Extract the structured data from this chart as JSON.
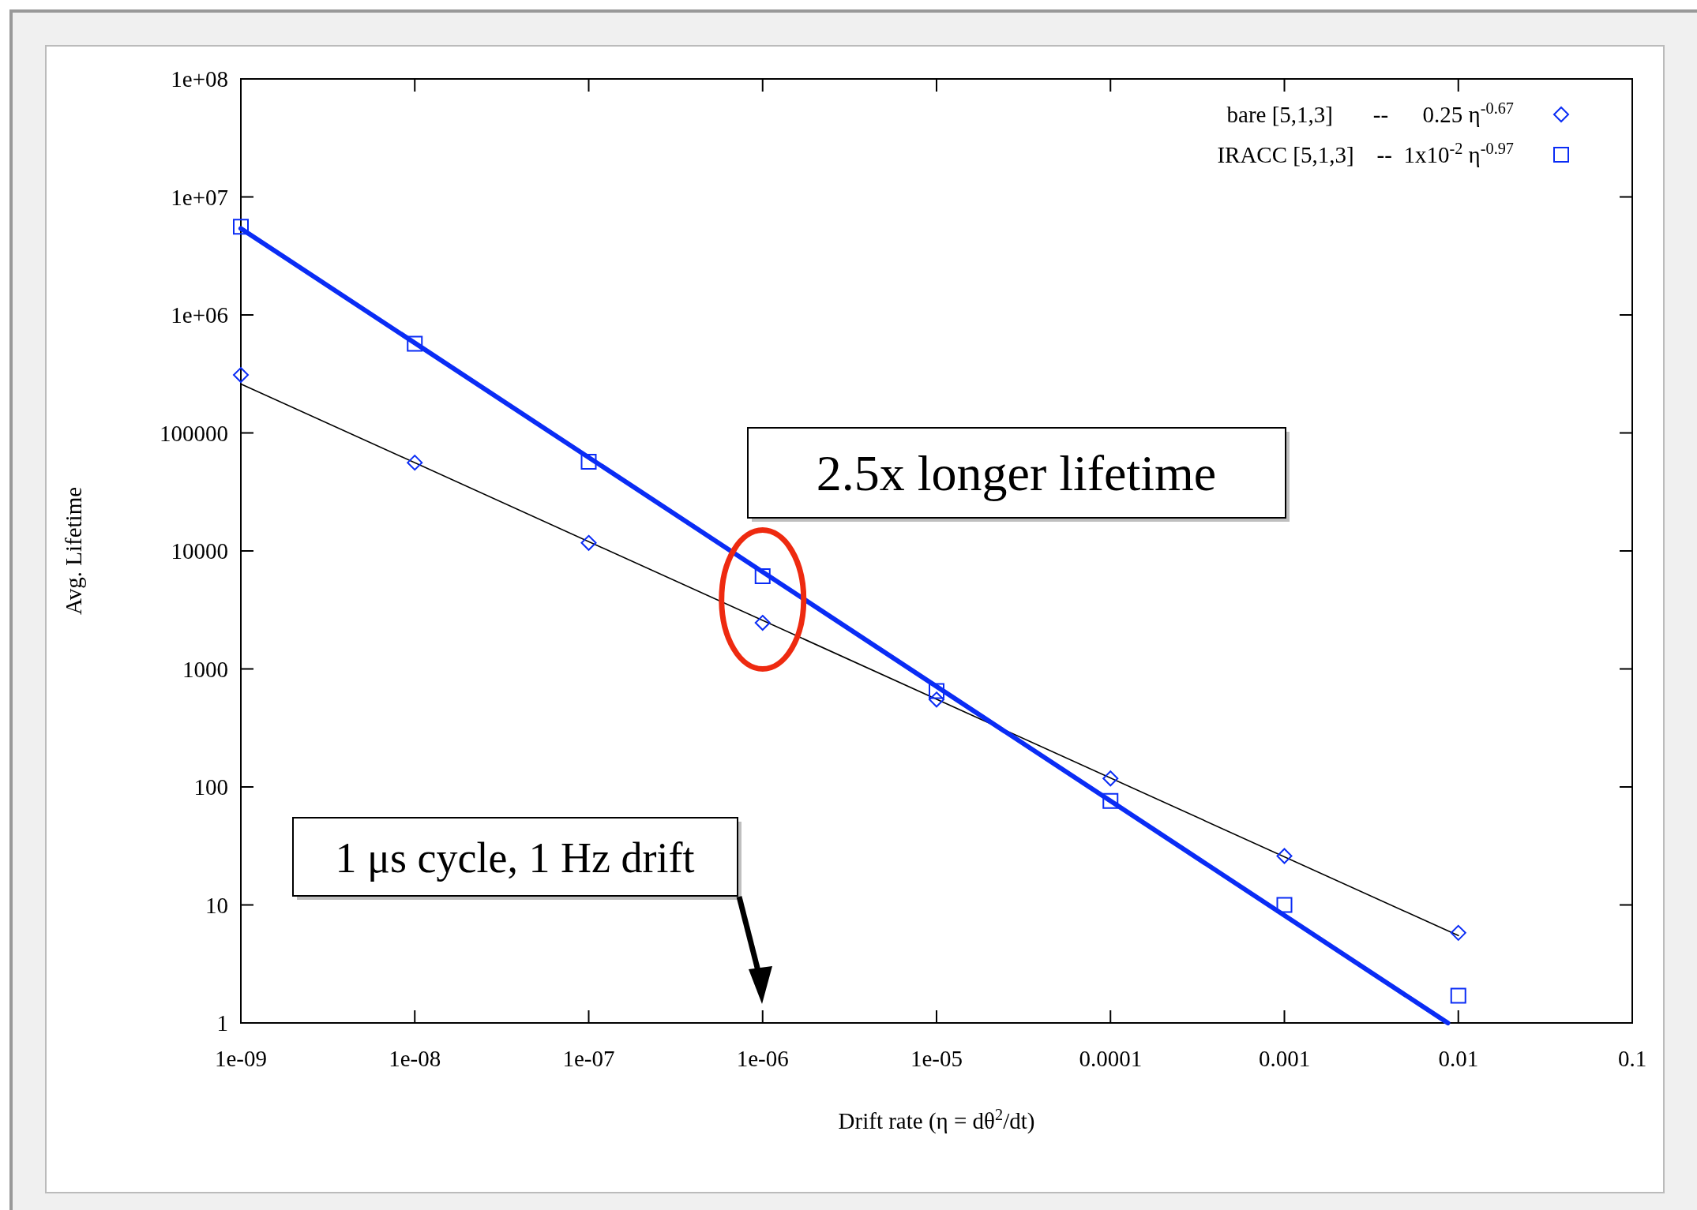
{
  "chart_data": {
    "type": "scatter",
    "xlabel": "Drift rate (η = dθ$^{2}$/dt)",
    "ylabel": "Avg. Lifetime",
    "log": "xy",
    "legend": "top right",
    "grid": false,
    "xlim": [
      1e-09,
      0.1
    ],
    "ylim": [
      1,
      100000000
    ],
    "xticks": [
      {
        "value": 1e-09,
        "label": "1e-09"
      },
      {
        "value": 1e-08,
        "label": "1e-08"
      },
      {
        "value": 1e-07,
        "label": "1e-07"
      },
      {
        "value": 1e-06,
        "label": "1e-06"
      },
      {
        "value": 1e-05,
        "label": "1e-05"
      },
      0.0001,
      0.001,
      0.01,
      0.1
    ],
    "yticks": [
      1,
      10,
      100,
      1000,
      10000,
      100000,
      {
        "value": 1000000,
        "label": "1e+06"
      },
      {
        "value": 10000000,
        "label": "1e+07"
      },
      {
        "value": 100000000,
        "label": "1e+08"
      }
    ],
    "series": [
      {
        "name": "bare [5,1,3]       --      0.25 η$^{-0.67}$",
        "marker": "diamond",
        "color": "#0a2cf5",
        "x": [
          1e-09,
          1e-08,
          1e-07,
          1e-06,
          1e-05,
          0.0001,
          0.001,
          0.01
        ],
        "values": [
          310000,
          56000,
          11700,
          2460,
          550,
          118,
          26,
          5.8
        ]
      },
      {
        "name": "IRACC [5,1,3]    --  1x10$^{-2}$ η$^{-0.97}$",
        "marker": "square",
        "color": "#0a2cf5",
        "x": [
          1e-09,
          1e-08,
          1e-07,
          1e-06,
          1e-05,
          0.0001,
          0.001,
          0.01
        ],
        "values": [
          5600000,
          570000,
          57000,
          6100,
          650,
          76,
          10,
          1.7
        ]
      },
      {
        "type": "line",
        "color": "#000000",
        "x": [
          1e-09,
          0.01
        ],
        "values": [
          260000,
          5.5
        ]
      },
      {
        "type": "line",
        "color": "#0a2cf5",
        "x": [
          1e-09,
          0.0087
        ],
        "values": [
          5400000,
          1
        ]
      }
    ],
    "annotations": [
      "2.5x longer lifetime",
      "1 μs cycle, 1 Hz drift"
    ]
  }
}
